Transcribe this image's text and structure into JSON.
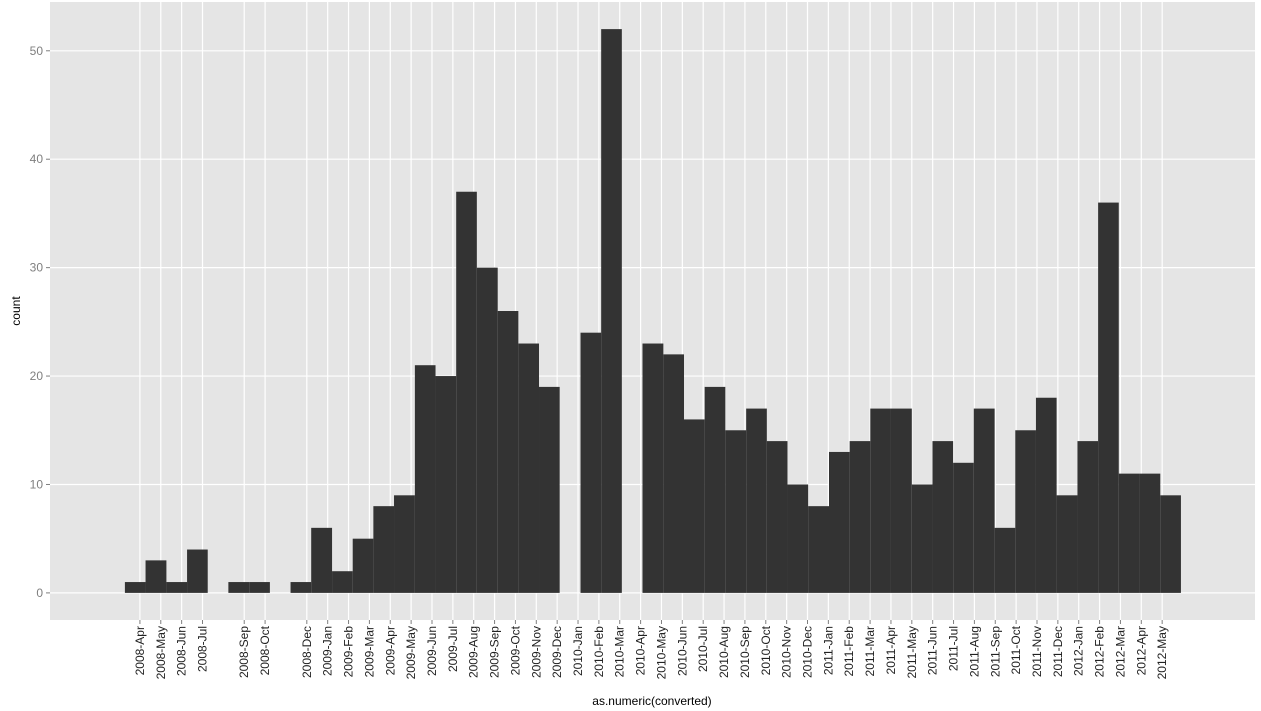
{
  "chart_data": {
    "type": "histogram",
    "x_label": "as.numeric(converted)",
    "y_label": "count",
    "color": "#333333",
    "grid": true,
    "bins": [
      -0.72,
      0.27,
      1.27,
      2.26,
      3.25,
      4.24,
      5.24,
      6.23,
      7.22,
      8.21,
      9.21,
      10.2,
      11.19,
      12.18,
      13.18,
      14.17,
      15.16,
      16.15,
      17.15,
      18.14,
      19.13,
      20.12,
      21.12,
      22.11,
      23.1,
      24.09,
      25.09,
      26.08,
      27.07,
      28.06,
      29.06,
      30.05,
      31.04,
      32.03,
      33.03,
      34.02,
      35.01,
      36.0,
      37.0,
      37.99,
      38.98,
      39.97,
      40.97,
      41.96,
      42.95,
      43.94,
      44.94,
      45.93,
      46.92,
      47.91,
      48.91,
      49.9
    ],
    "values": [
      1,
      3,
      1,
      4,
      0,
      1,
      1,
      0,
      1,
      6,
      2,
      5,
      8,
      9,
      21,
      20,
      37,
      30,
      26,
      23,
      19,
      0,
      24,
      52,
      0,
      23,
      22,
      16,
      19,
      15,
      17,
      14,
      10,
      8,
      13,
      14,
      17,
      17,
      10,
      14,
      12,
      17,
      6,
      15,
      18,
      9,
      14,
      36,
      11,
      11,
      9
    ],
    "xlim": [
      -4.31,
      53.45
    ],
    "ylim": [
      -2.5,
      54.5
    ],
    "yticks": [
      0,
      10,
      20,
      30,
      40,
      50
    ],
    "xticks": [
      {
        "value": 0,
        "label": "2008-Apr"
      },
      {
        "value": 1,
        "label": "2008-May"
      },
      {
        "value": 2,
        "label": "2008-Jun"
      },
      {
        "value": 3,
        "label": "2008-Jul"
      },
      {
        "value": 5,
        "label": "2008-Sep"
      },
      {
        "value": 6,
        "label": "2008-Oct"
      },
      {
        "value": 8,
        "label": "2008-Dec"
      },
      {
        "value": 9,
        "label": "2009-Jan"
      },
      {
        "value": 10,
        "label": "2009-Feb"
      },
      {
        "value": 11,
        "label": "2009-Mar"
      },
      {
        "value": 12,
        "label": "2009-Apr"
      },
      {
        "value": 13,
        "label": "2009-May"
      },
      {
        "value": 14,
        "label": "2009-Jun"
      },
      {
        "value": 15,
        "label": "2009-Jul"
      },
      {
        "value": 16,
        "label": "2009-Aug"
      },
      {
        "value": 17,
        "label": "2009-Sep"
      },
      {
        "value": 18,
        "label": "2009-Oct"
      },
      {
        "value": 19,
        "label": "2009-Nov"
      },
      {
        "value": 20,
        "label": "2009-Dec"
      },
      {
        "value": 21,
        "label": "2010-Jan"
      },
      {
        "value": 22,
        "label": "2010-Feb"
      },
      {
        "value": 23,
        "label": "2010-Mar"
      },
      {
        "value": 24,
        "label": "2010-Apr"
      },
      {
        "value": 25,
        "label": "2010-May"
      },
      {
        "value": 26,
        "label": "2010-Jun"
      },
      {
        "value": 27,
        "label": "2010-Jul"
      },
      {
        "value": 28,
        "label": "2010-Aug"
      },
      {
        "value": 29,
        "label": "2010-Sep"
      },
      {
        "value": 30,
        "label": "2010-Oct"
      },
      {
        "value": 31,
        "label": "2010-Nov"
      },
      {
        "value": 32,
        "label": "2010-Dec"
      },
      {
        "value": 33,
        "label": "2011-Jan"
      },
      {
        "value": 34,
        "label": "2011-Feb"
      },
      {
        "value": 35,
        "label": "2011-Mar"
      },
      {
        "value": 36,
        "label": "2011-Apr"
      },
      {
        "value": 37,
        "label": "2011-May"
      },
      {
        "value": 38,
        "label": "2011-Jun"
      },
      {
        "value": 39,
        "label": "2011-Jul"
      },
      {
        "value": 40,
        "label": "2011-Aug"
      },
      {
        "value": 41,
        "label": "2011-Sep"
      },
      {
        "value": 42,
        "label": "2011-Oct"
      },
      {
        "value": 43,
        "label": "2011-Nov"
      },
      {
        "value": 44,
        "label": "2011-Dec"
      },
      {
        "value": 45,
        "label": "2012-Jan"
      },
      {
        "value": 46,
        "label": "2012-Feb"
      },
      {
        "value": 47,
        "label": "2012-Mar"
      },
      {
        "value": 48,
        "label": "2012-Apr"
      },
      {
        "value": 49,
        "label": "2012-May"
      }
    ]
  }
}
